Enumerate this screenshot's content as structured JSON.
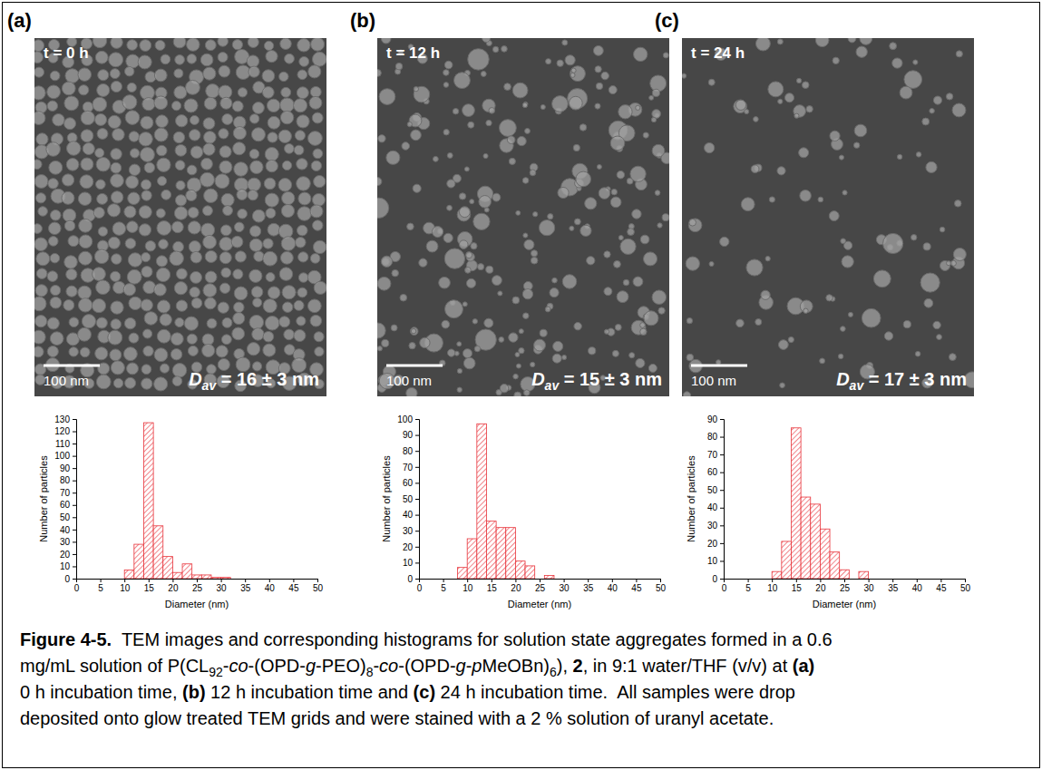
{
  "chart_data": [
    {
      "type": "histogram",
      "x_label": "Diameter (nm)",
      "y_label": "Number of particles",
      "bins": [
        10,
        12,
        14,
        16,
        18,
        20,
        22,
        24,
        26,
        28,
        30,
        32
      ],
      "values": [
        7,
        28,
        127,
        43,
        18,
        5,
        12,
        3,
        3,
        1,
        1
      ],
      "color": "#e8333a",
      "xlim": [
        0,
        50
      ],
      "xticks": [
        0,
        5,
        10,
        15,
        20,
        25,
        30,
        35,
        40,
        45,
        50
      ],
      "ylim": [
        0,
        130
      ],
      "yticks": [
        0,
        10,
        20,
        30,
        40,
        50,
        60,
        70,
        80,
        90,
        100,
        110,
        120,
        130
      ]
    },
    {
      "type": "histogram",
      "x_label": "Diameter (nm)",
      "y_label": "Number of particles",
      "bins": [
        8,
        10,
        12,
        14,
        16,
        18,
        20,
        22,
        24,
        26,
        28
      ],
      "values": [
        7,
        25,
        97,
        36,
        32,
        32,
        11,
        8,
        0,
        2
      ],
      "color": "#e8333a",
      "xlim": [
        0,
        50
      ],
      "xticks": [
        0,
        5,
        10,
        15,
        20,
        25,
        30,
        35,
        40,
        45,
        50
      ],
      "ylim": [
        0,
        100
      ],
      "yticks": [
        0,
        10,
        20,
        30,
        40,
        50,
        60,
        70,
        80,
        90,
        100
      ]
    },
    {
      "type": "histogram",
      "x_label": "Diameter (nm)",
      "y_label": "Number of particles",
      "bins": [
        10,
        12,
        14,
        16,
        18,
        20,
        22,
        24,
        26,
        28,
        30
      ],
      "values": [
        4,
        21,
        85,
        46,
        42,
        28,
        15,
        5,
        0,
        4
      ],
      "color": "#e8333a",
      "xlim": [
        0,
        50
      ],
      "xticks": [
        0,
        5,
        10,
        15,
        20,
        25,
        30,
        35,
        40,
        45,
        50
      ],
      "ylim": [
        0,
        90
      ],
      "yticks": [
        0,
        10,
        20,
        30,
        40,
        50,
        60,
        70,
        80,
        90
      ]
    }
  ],
  "panels": [
    {
      "letter": "(a)",
      "time": "t = 0 h",
      "scale_bar": "100 nm",
      "average_diameter": {
        "symbol": "D",
        "subscript": "av",
        "text": " = 16 ± 3 nm"
      }
    },
    {
      "letter": "(b)",
      "time": "t = 12 h",
      "scale_bar": "100 nm",
      "average_diameter": {
        "symbol": "D",
        "subscript": "av",
        "text": " = 15 ± 3 nm"
      }
    },
    {
      "letter": "(c)",
      "time": "t = 24 h",
      "scale_bar": "100 nm",
      "average_diameter": {
        "symbol": "D",
        "subscript": "av",
        "text": " = 17 ± 3 nm"
      }
    }
  ],
  "caption": {
    "lines": [
      [
        {
          "text": "Figure 4-5.",
          "style": "bold"
        },
        {
          "text": "  TEM images and corresponding histograms for solution state aggregates formed in a 0.6",
          "style": "normal"
        }
      ],
      [
        {
          "text": "mg/mL solution of P(CL",
          "style": "normal"
        },
        {
          "text": "92",
          "style": "sub"
        },
        {
          "text": "-",
          "style": "normal"
        },
        {
          "text": "co",
          "style": "italic"
        },
        {
          "text": "-(OPD-",
          "style": "normal"
        },
        {
          "text": "g",
          "style": "italic"
        },
        {
          "text": "-PEO)",
          "style": "normal"
        },
        {
          "text": "8",
          "style": "sub"
        },
        {
          "text": "-",
          "style": "normal"
        },
        {
          "text": "co",
          "style": "italic"
        },
        {
          "text": "-(OPD-",
          "style": "normal"
        },
        {
          "text": "g",
          "style": "italic"
        },
        {
          "text": "-",
          "style": "normal"
        },
        {
          "text": "p",
          "style": "italic"
        },
        {
          "text": "MeOBn)",
          "style": "normal"
        },
        {
          "text": "6",
          "style": "sub"
        },
        {
          "text": "), ",
          "style": "normal"
        },
        {
          "text": "2",
          "style": "bold"
        },
        {
          "text": ", in 9:1 water/THF (v/v) at ",
          "style": "normal"
        },
        {
          "text": "(a)",
          "style": "bold"
        }
      ],
      [
        {
          "text": "0 h incubation time, ",
          "style": "normal"
        },
        {
          "text": "(b)",
          "style": "bold"
        },
        {
          "text": " 12 h incubation time and ",
          "style": "normal"
        },
        {
          "text": "(c)",
          "style": "bold"
        },
        {
          "text": " 24 h incubation time.  All samples were drop",
          "style": "normal"
        }
      ],
      [
        {
          "text": "deposited onto glow treated TEM grids and were stained with a 2 % solution of uranyl acetate.",
          "style": "normal"
        }
      ]
    ]
  }
}
